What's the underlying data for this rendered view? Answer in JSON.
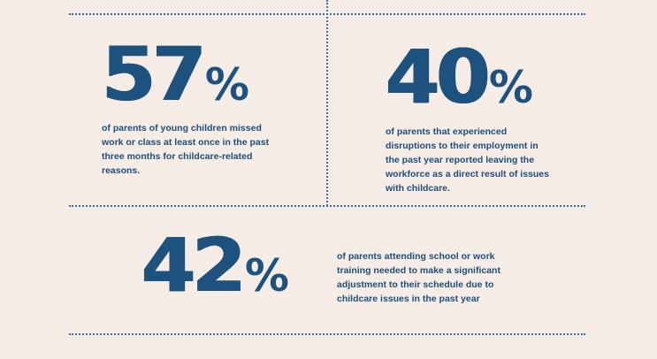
{
  "stats": [
    {
      "number": "57",
      "percent_sign": "%",
      "description": "of parents of young children missed work or class at least once in the past three months for childcare-related reasons."
    },
    {
      "number": "40",
      "percent_sign": "%",
      "description": "of parents that experienced disruptions to their employment in the past year reported leaving the workforce as a direct result of issues with childcare."
    },
    {
      "number": "42",
      "percent_sign": "%",
      "description": "of parents attending school or work training needed to make a significant adjustment to their schedule due to childcare issues in the past year"
    }
  ],
  "colors": {
    "background": "#f4ece5",
    "accent": "#1d527f",
    "rule": "#3a6fa3"
  }
}
